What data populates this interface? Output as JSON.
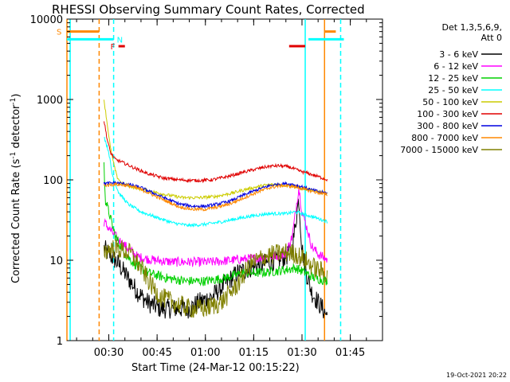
{
  "chart_data": {
    "type": "line",
    "title": "RHESSI Observing Summary Count Rates, Corrected",
    "xlabel": "Start Time (24-Mar-12 00:15:22)",
    "ylabel_main": "Corrected Count Rate (s",
    "ylabel_sup": "-1",
    "ylabel_tail": " detector",
    "ylabel_sup2": "-1",
    "ylabel_end": ")",
    "y_scale": "log",
    "ylim": [
      1,
      10000
    ],
    "xlim_minutes": [
      17,
      55
    ],
    "xlim_note_start": "00:15:22",
    "y_ticks": [
      {
        "value": 1,
        "label": "1"
      },
      {
        "value": 10,
        "label": "10"
      },
      {
        "value": 100,
        "label": "100"
      },
      {
        "value": 1000,
        "label": "1000"
      },
      {
        "value": 10000,
        "label": "10000"
      }
    ],
    "x_ticks": [
      {
        "minute": 30,
        "label": "00:30"
      },
      {
        "minute": 45,
        "label": "00:45"
      },
      {
        "minute": 60,
        "label": "01:00"
      },
      {
        "minute": 75,
        "label": "01:15"
      },
      {
        "minute": 90,
        "label": "01:30"
      },
      {
        "minute": 105,
        "label": "01:45"
      }
    ],
    "legend_header": [
      "Det 1,3,5,6,9,",
      "Att 0"
    ],
    "legend_placement": "right, outside plot",
    "series": [
      {
        "name": "3 - 6 keV",
        "color": "#000000",
        "points": [
          [
            28.5,
            14
          ],
          [
            30,
            12
          ],
          [
            33,
            9
          ],
          [
            36,
            6
          ],
          [
            39,
            4
          ],
          [
            42,
            3
          ],
          [
            46,
            2.5
          ],
          [
            50,
            2.5
          ],
          [
            55,
            2.5
          ],
          [
            58,
            3
          ],
          [
            62,
            3.5
          ],
          [
            66,
            5
          ],
          [
            70,
            7
          ],
          [
            74,
            8
          ],
          [
            78,
            9
          ],
          [
            82,
            10
          ],
          [
            85,
            11
          ],
          [
            87,
            14
          ],
          [
            89,
            60
          ],
          [
            90,
            14
          ],
          [
            91,
            8
          ],
          [
            93,
            4
          ],
          [
            95,
            3
          ],
          [
            98,
            2
          ]
        ]
      },
      {
        "name": "6 - 12 keV",
        "color": "#ff00ff",
        "points": [
          [
            28.5,
            30
          ],
          [
            30,
            25
          ],
          [
            33,
            18
          ],
          [
            36,
            14
          ],
          [
            39,
            11
          ],
          [
            44,
            10
          ],
          [
            50,
            9.5
          ],
          [
            56,
            9.5
          ],
          [
            62,
            9.5
          ],
          [
            68,
            10
          ],
          [
            74,
            10.5
          ],
          [
            80,
            11
          ],
          [
            85,
            12
          ],
          [
            87,
            20
          ],
          [
            89,
            80
          ],
          [
            90,
            40
          ],
          [
            91,
            30
          ],
          [
            93,
            15
          ],
          [
            95,
            12
          ],
          [
            98,
            10
          ]
        ]
      },
      {
        "name": "12 - 25 keV",
        "color": "#00d000",
        "points": [
          [
            28.5,
            150
          ],
          [
            29,
            55
          ],
          [
            30,
            40
          ],
          [
            32,
            20
          ],
          [
            35,
            12
          ],
          [
            38,
            9
          ],
          [
            42,
            7
          ],
          [
            48,
            6
          ],
          [
            54,
            5.5
          ],
          [
            60,
            5.5
          ],
          [
            66,
            6
          ],
          [
            72,
            7
          ],
          [
            78,
            7
          ],
          [
            84,
            7.5
          ],
          [
            88,
            8
          ],
          [
            91,
            7
          ],
          [
            94,
            6
          ],
          [
            98,
            5.5
          ]
        ]
      },
      {
        "name": "25 - 50 keV",
        "color": "#00ffff",
        "points": [
          [
            28.5,
            350
          ],
          [
            30,
            220
          ],
          [
            31,
            120
          ],
          [
            33,
            70
          ],
          [
            36,
            50
          ],
          [
            40,
            40
          ],
          [
            45,
            34
          ],
          [
            50,
            29
          ],
          [
            55,
            27
          ],
          [
            60,
            28
          ],
          [
            65,
            30
          ],
          [
            70,
            33
          ],
          [
            75,
            36
          ],
          [
            80,
            38
          ],
          [
            85,
            38
          ],
          [
            88,
            40
          ],
          [
            90,
            38
          ],
          [
            93,
            35
          ],
          [
            96,
            32
          ],
          [
            98,
            30
          ]
        ]
      },
      {
        "name": "50 - 100 keV",
        "color": "#cccc00",
        "points": [
          [
            28.5,
            1000
          ],
          [
            29.5,
            500
          ],
          [
            30.5,
            250
          ],
          [
            31.5,
            160
          ],
          [
            32.5,
            110
          ],
          [
            34,
            90
          ],
          [
            38,
            80
          ],
          [
            43,
            72
          ],
          [
            48,
            65
          ],
          [
            53,
            60
          ],
          [
            58,
            60
          ],
          [
            63,
            62
          ],
          [
            68,
            68
          ],
          [
            73,
            77
          ],
          [
            78,
            85
          ],
          [
            82,
            88
          ],
          [
            86,
            85
          ],
          [
            90,
            78
          ],
          [
            93,
            74
          ],
          [
            96,
            70
          ],
          [
            98,
            68
          ]
        ]
      },
      {
        "name": "100 - 300 keV",
        "color": "#e00000",
        "points": [
          [
            28.5,
            550
          ],
          [
            29.5,
            320
          ],
          [
            30.5,
            220
          ],
          [
            32,
            180
          ],
          [
            35,
            160
          ],
          [
            38,
            140
          ],
          [
            42,
            120
          ],
          [
            47,
            105
          ],
          [
            52,
            100
          ],
          [
            57,
            98
          ],
          [
            62,
            100
          ],
          [
            67,
            110
          ],
          [
            72,
            125
          ],
          [
            77,
            140
          ],
          [
            80,
            148
          ],
          [
            83,
            150
          ],
          [
            86,
            145
          ],
          [
            89,
            130
          ],
          [
            92,
            120
          ],
          [
            95,
            110
          ],
          [
            98,
            100
          ]
        ]
      },
      {
        "name": "300 - 800 keV",
        "color": "#0000e0",
        "points": [
          [
            28.5,
            90
          ],
          [
            32,
            92
          ],
          [
            36,
            88
          ],
          [
            40,
            80
          ],
          [
            44,
            68
          ],
          [
            48,
            58
          ],
          [
            52,
            50
          ],
          [
            56,
            47
          ],
          [
            60,
            47
          ],
          [
            64,
            50
          ],
          [
            68,
            55
          ],
          [
            72,
            65
          ],
          [
            76,
            75
          ],
          [
            80,
            85
          ],
          [
            84,
            90
          ],
          [
            87,
            88
          ],
          [
            90,
            82
          ],
          [
            93,
            75
          ],
          [
            96,
            70
          ],
          [
            98,
            68
          ]
        ]
      },
      {
        "name": "800 - 7000 keV",
        "color": "#ff8800",
        "points": [
          [
            28.5,
            85
          ],
          [
            32,
            88
          ],
          [
            36,
            85
          ],
          [
            40,
            76
          ],
          [
            44,
            64
          ],
          [
            48,
            54
          ],
          [
            52,
            46
          ],
          [
            56,
            43
          ],
          [
            60,
            43
          ],
          [
            64,
            46
          ],
          [
            68,
            51
          ],
          [
            72,
            60
          ],
          [
            76,
            70
          ],
          [
            80,
            80
          ],
          [
            84,
            85
          ],
          [
            87,
            83
          ],
          [
            90,
            78
          ],
          [
            93,
            72
          ],
          [
            96,
            68
          ],
          [
            98,
            65
          ]
        ]
      },
      {
        "name": "7000 - 15000 keV",
        "color": "#808000",
        "points": [
          [
            28.5,
            13
          ],
          [
            31,
            14
          ],
          [
            34,
            13.5
          ],
          [
            37,
            12
          ],
          [
            40,
            8
          ],
          [
            43,
            5
          ],
          [
            46,
            3.5
          ],
          [
            50,
            3
          ],
          [
            55,
            2.5
          ],
          [
            60,
            2.5
          ],
          [
            65,
            3
          ],
          [
            70,
            5
          ],
          [
            74,
            9
          ],
          [
            78,
            11
          ],
          [
            82,
            12
          ],
          [
            85,
            12.5
          ],
          [
            88,
            12
          ],
          [
            91,
            10
          ],
          [
            94,
            8
          ],
          [
            97,
            7
          ],
          [
            98,
            6
          ]
        ]
      }
    ],
    "flags": [
      {
        "label": "S",
        "color": "#ff8800",
        "row_y_value": 7000,
        "segments": [
          [
            17,
            27
          ],
          [
            97,
            100.5
          ]
        ]
      },
      {
        "label": "N",
        "color": "#00ffff",
        "row_y_value": 5600,
        "segments": [
          [
            17,
            31.5
          ],
          [
            92,
            103
          ]
        ]
      },
      {
        "label": "F",
        "color": "#e00000",
        "row_y_value": 4600,
        "segments": [
          [
            33,
            35
          ],
          [
            86,
            91
          ]
        ]
      }
    ],
    "markers": [
      {
        "minute": 17,
        "color": "#ff8800",
        "style": "solid"
      },
      {
        "minute": 18,
        "color": "#00ffff",
        "style": "solid"
      },
      {
        "minute": 27,
        "color": "#ff8800",
        "style": "dashed"
      },
      {
        "minute": 31.5,
        "color": "#00ffff",
        "style": "dashed"
      },
      {
        "minute": 91,
        "color": "#00ffff",
        "style": "solid"
      },
      {
        "minute": 97,
        "color": "#ff8800",
        "style": "solid"
      },
      {
        "minute": 102,
        "color": "#00ffff",
        "style": "dashed"
      }
    ],
    "grid": false
  },
  "footer": {
    "timestamp": "19-Oct-2021 20:22"
  }
}
